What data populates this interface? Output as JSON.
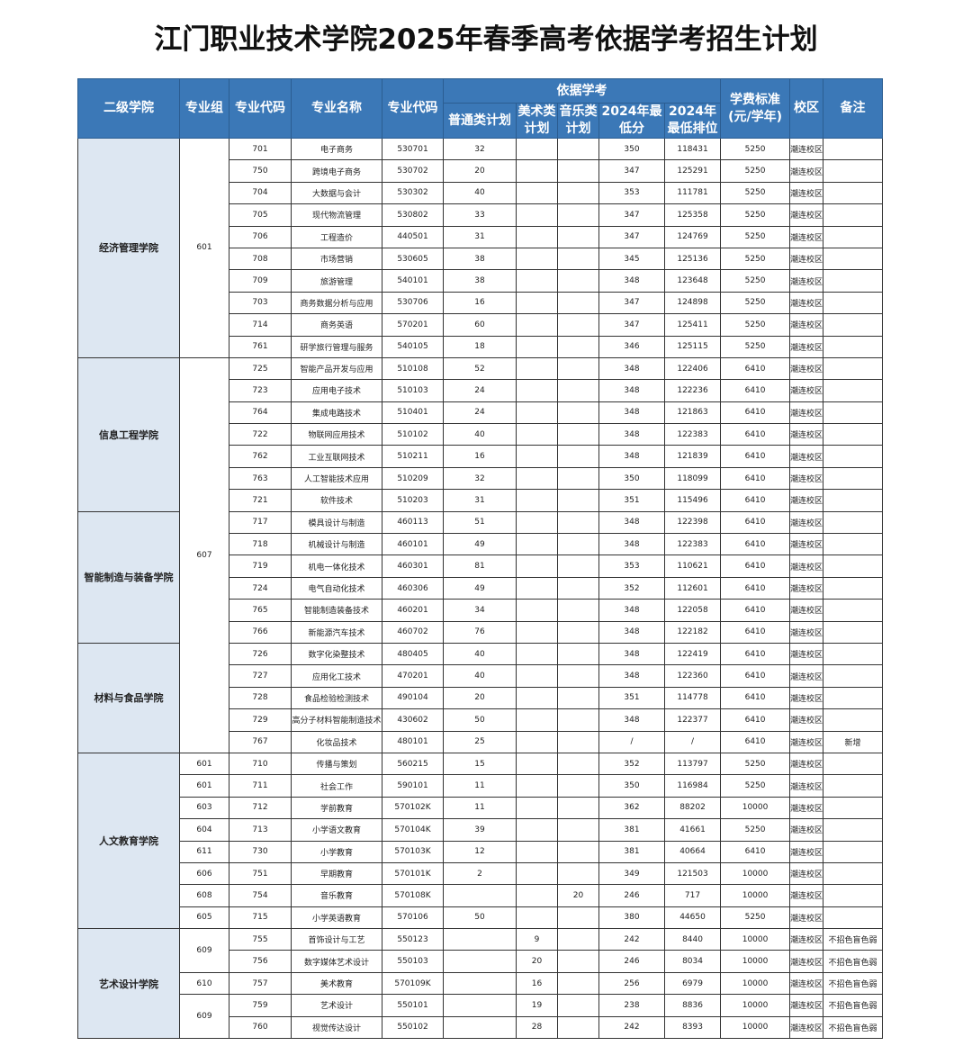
{
  "title": "江门职业技术学院2025年春季高考依据学考招生计划",
  "header": {
    "college": "二级学院",
    "group": "专业组",
    "major_code": "专业代码",
    "major_name": "专业名称",
    "major_code2": "专业代码",
    "basis": "依据学考",
    "general_plan": "普通类计划",
    "art_plan": "美术类计划",
    "music_plan": "音乐类计划",
    "min_score": "2024年最低分",
    "min_rank": "2024年最低排位",
    "tuition": "学费标准(元/学年)",
    "campus": "校区",
    "remark": "备注"
  },
  "colors": {
    "header_bg": "#3b78b7",
    "college_bg": "#dde7f2"
  },
  "groups": [
    {
      "code": "601",
      "size": 10
    },
    {
      "code": "607",
      "size": 18
    },
    {
      "code": "601",
      "size": 1
    },
    {
      "code": "601",
      "size": 1
    },
    {
      "code": "603",
      "size": 1
    },
    {
      "code": "604",
      "size": 1
    },
    {
      "code": "611",
      "size": 1
    },
    {
      "code": "606",
      "size": 1
    },
    {
      "code": "608",
      "size": 1
    },
    {
      "code": "605",
      "size": 1
    },
    {
      "code": "609",
      "size": 2
    },
    {
      "code": "610",
      "size": 1
    },
    {
      "code": "609",
      "size": 2
    }
  ],
  "colleges": [
    {
      "name": "经济管理学院",
      "majors": [
        [
          "701",
          "电子商务",
          "530701",
          "32",
          "",
          "",
          "350",
          "118431",
          "5250",
          "潮连校区",
          ""
        ],
        [
          "750",
          "跨境电子商务",
          "530702",
          "20",
          "",
          "",
          "347",
          "125291",
          "5250",
          "潮连校区",
          ""
        ],
        [
          "704",
          "大数据与会计",
          "530302",
          "40",
          "",
          "",
          "353",
          "111781",
          "5250",
          "潮连校区",
          ""
        ],
        [
          "705",
          "现代物流管理",
          "530802",
          "33",
          "",
          "",
          "347",
          "125358",
          "5250",
          "潮连校区",
          ""
        ],
        [
          "706",
          "工程造价",
          "440501",
          "31",
          "",
          "",
          "347",
          "124769",
          "5250",
          "潮连校区",
          ""
        ],
        [
          "708",
          "市场营销",
          "530605",
          "38",
          "",
          "",
          "345",
          "125136",
          "5250",
          "潮连校区",
          ""
        ],
        [
          "709",
          "旅游管理",
          "540101",
          "38",
          "",
          "",
          "348",
          "123648",
          "5250",
          "潮连校区",
          ""
        ],
        [
          "703",
          "商务数据分析与应用",
          "530706",
          "16",
          "",
          "",
          "347",
          "124898",
          "5250",
          "潮连校区",
          ""
        ],
        [
          "714",
          "商务英语",
          "570201",
          "60",
          "",
          "",
          "347",
          "125411",
          "5250",
          "潮连校区",
          ""
        ],
        [
          "761",
          "研学旅行管理与服务",
          "540105",
          "18",
          "",
          "",
          "346",
          "125115",
          "5250",
          "潮连校区",
          ""
        ]
      ]
    },
    {
      "name": "信息工程学院",
      "majors": [
        [
          "725",
          "智能产品开发与应用",
          "510108",
          "52",
          "",
          "",
          "348",
          "122406",
          "6410",
          "潮连校区",
          ""
        ],
        [
          "723",
          "应用电子技术",
          "510103",
          "24",
          "",
          "",
          "348",
          "122236",
          "6410",
          "潮连校区",
          ""
        ],
        [
          "764",
          "集成电路技术",
          "510401",
          "24",
          "",
          "",
          "348",
          "121863",
          "6410",
          "潮连校区",
          ""
        ],
        [
          "722",
          "物联网应用技术",
          "510102",
          "40",
          "",
          "",
          "348",
          "122383",
          "6410",
          "潮连校区",
          ""
        ],
        [
          "762",
          "工业互联网技术",
          "510211",
          "16",
          "",
          "",
          "348",
          "121839",
          "6410",
          "潮连校区",
          ""
        ],
        [
          "763",
          "人工智能技术应用",
          "510209",
          "32",
          "",
          "",
          "350",
          "118099",
          "6410",
          "潮连校区",
          ""
        ],
        [
          "721",
          "软件技术",
          "510203",
          "31",
          "",
          "",
          "351",
          "115496",
          "6410",
          "潮连校区",
          ""
        ]
      ]
    },
    {
      "name": "智能制造与装备学院",
      "majors": [
        [
          "717",
          "模具设计与制造",
          "460113",
          "51",
          "",
          "",
          "348",
          "122398",
          "6410",
          "潮连校区",
          ""
        ],
        [
          "718",
          "机械设计与制造",
          "460101",
          "49",
          "",
          "",
          "348",
          "122383",
          "6410",
          "潮连校区",
          ""
        ],
        [
          "719",
          "机电一体化技术",
          "460301",
          "81",
          "",
          "",
          "353",
          "110621",
          "6410",
          "潮连校区",
          ""
        ],
        [
          "724",
          "电气自动化技术",
          "460306",
          "49",
          "",
          "",
          "352",
          "112601",
          "6410",
          "潮连校区",
          ""
        ],
        [
          "765",
          "智能制造装备技术",
          "460201",
          "34",
          "",
          "",
          "348",
          "122058",
          "6410",
          "潮连校区",
          ""
        ],
        [
          "766",
          "新能源汽车技术",
          "460702",
          "76",
          "",
          "",
          "348",
          "122182",
          "6410",
          "潮连校区",
          ""
        ]
      ]
    },
    {
      "name": "材料与食品学院",
      "majors": [
        [
          "726",
          "数字化染整技术",
          "480405",
          "40",
          "",
          "",
          "348",
          "122419",
          "6410",
          "潮连校区",
          ""
        ],
        [
          "727",
          "应用化工技术",
          "470201",
          "40",
          "",
          "",
          "348",
          "122360",
          "6410",
          "潮连校区",
          ""
        ],
        [
          "728",
          "食品检验检测技术",
          "490104",
          "20",
          "",
          "",
          "351",
          "114778",
          "6410",
          "潮连校区",
          ""
        ],
        [
          "729",
          "高分子材料智能制造技术",
          "430602",
          "50",
          "",
          "",
          "348",
          "122377",
          "6410",
          "潮连校区",
          ""
        ],
        [
          "767",
          "化妆品技术",
          "480101",
          "25",
          "",
          "",
          "/",
          "/",
          "6410",
          "潮连校区",
          "新增"
        ]
      ]
    },
    {
      "name": "人文教育学院",
      "majors": [
        [
          "710",
          "传播与策划",
          "560215",
          "15",
          "",
          "",
          "352",
          "113797",
          "5250",
          "潮连校区",
          ""
        ],
        [
          "711",
          "社会工作",
          "590101",
          "11",
          "",
          "",
          "350",
          "116984",
          "5250",
          "潮连校区",
          ""
        ],
        [
          "712",
          "学前教育",
          "570102K",
          "11",
          "",
          "",
          "362",
          "88202",
          "10000",
          "潮连校区",
          ""
        ],
        [
          "713",
          "小学语文教育",
          "570104K",
          "39",
          "",
          "",
          "381",
          "41661",
          "5250",
          "潮连校区",
          ""
        ],
        [
          "730",
          "小学教育",
          "570103K",
          "12",
          "",
          "",
          "381",
          "40664",
          "6410",
          "潮连校区",
          ""
        ],
        [
          "751",
          "早期教育",
          "570101K",
          "2",
          "",
          "",
          "349",
          "121503",
          "10000",
          "潮连校区",
          ""
        ],
        [
          "754",
          "音乐教育",
          "570108K",
          "",
          "",
          "20",
          "246",
          "717",
          "10000",
          "潮连校区",
          ""
        ],
        [
          "715",
          "小学英语教育",
          "570106",
          "50",
          "",
          "",
          "380",
          "44650",
          "5250",
          "潮连校区",
          ""
        ]
      ]
    },
    {
      "name": "艺术设计学院",
      "majors": [
        [
          "755",
          "首饰设计与工艺",
          "550123",
          "",
          "9",
          "",
          "242",
          "8440",
          "10000",
          "潮连校区",
          "不招色盲色弱"
        ],
        [
          "756",
          "数字媒体艺术设计",
          "550103",
          "",
          "20",
          "",
          "246",
          "8034",
          "10000",
          "潮连校区",
          "不招色盲色弱"
        ],
        [
          "757",
          "美术教育",
          "570109K",
          "",
          "16",
          "",
          "256",
          "6979",
          "10000",
          "潮连校区",
          "不招色盲色弱"
        ],
        [
          "759",
          "艺术设计",
          "550101",
          "",
          "19",
          "",
          "238",
          "8836",
          "10000",
          "潮连校区",
          "不招色盲色弱"
        ],
        [
          "760",
          "视觉传达设计",
          "550102",
          "",
          "28",
          "",
          "242",
          "8393",
          "10000",
          "潮连校区",
          "不招色盲色弱"
        ]
      ]
    }
  ]
}
